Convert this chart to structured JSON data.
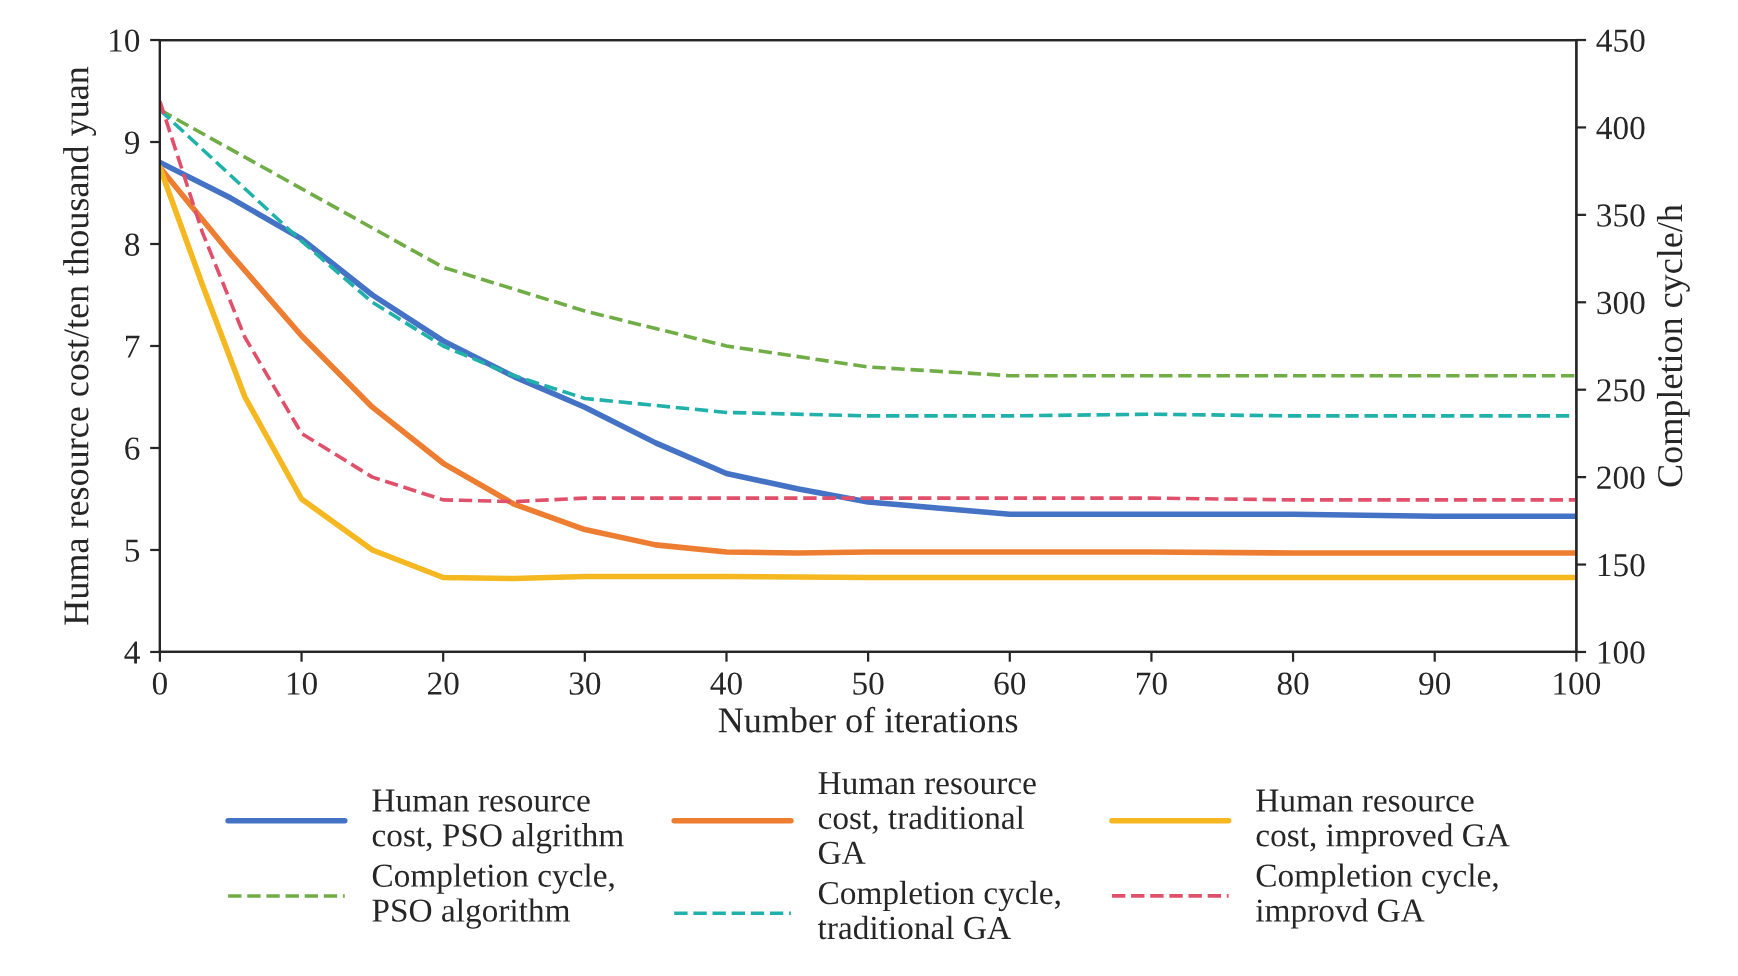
{
  "chart_data": {
    "type": "line",
    "xlabel": "Number of iterations",
    "ylabel": "Huma resource cost/ten thousand yuan",
    "y2label": "Completion cycle/h",
    "xlim": [
      0,
      100
    ],
    "xticks": [
      0,
      10,
      20,
      30,
      40,
      50,
      60,
      70,
      80,
      90,
      100
    ],
    "ylim": [
      4,
      10
    ],
    "yticks": [
      4,
      5,
      6,
      7,
      8,
      9,
      10
    ],
    "y2lim": [
      100,
      450
    ],
    "y2ticks": [
      100,
      150,
      200,
      250,
      300,
      350,
      400,
      450
    ],
    "grid": false,
    "legend": "bottom",
    "marker": "none",
    "series": [
      {
        "name": "Human resource cost, PSO algrithm",
        "color": "#4472c4",
        "line_style": "solid",
        "x": [
          0,
          5,
          10,
          15,
          20,
          25,
          30,
          35,
          40,
          45,
          50,
          60,
          70,
          80,
          90,
          100
        ],
        "values": [
          8.8,
          8.45,
          8.05,
          7.5,
          7.05,
          6.7,
          6.4,
          6.05,
          5.75,
          5.6,
          5.47,
          5.35,
          5.35,
          5.35,
          5.33,
          5.33
        ]
      },
      {
        "name": "Human resource cost, traditional GA",
        "color": "#ed7d31",
        "line_style": "solid",
        "x": [
          0,
          5,
          10,
          15,
          20,
          25,
          30,
          35,
          40,
          45,
          50,
          60,
          70,
          80,
          90,
          100
        ],
        "values": [
          8.75,
          7.9,
          7.1,
          6.4,
          5.85,
          5.45,
          5.2,
          5.05,
          4.98,
          4.97,
          4.98,
          4.98,
          4.98,
          4.97,
          4.97,
          4.97
        ]
      },
      {
        "name": "Human resource cost, improved GA",
        "color": "#f5b820",
        "line_style": "solid",
        "x": [
          0,
          3,
          6,
          10,
          15,
          20,
          25,
          30,
          40,
          50,
          60,
          70,
          80,
          90,
          100
        ],
        "values": [
          8.75,
          7.6,
          6.5,
          5.5,
          5.0,
          4.73,
          4.72,
          4.74,
          4.74,
          4.73,
          4.73,
          4.73,
          4.73,
          4.73,
          4.73
        ]
      },
      {
        "name": "Completion cycle, PSO algorithm",
        "color": "#70ad47",
        "line_style": "dashed",
        "axis": "y2",
        "x": [
          0,
          10,
          20,
          30,
          40,
          50,
          60,
          70,
          80,
          90,
          100
        ],
        "values": [
          410,
          365,
          320,
          295,
          275,
          263,
          258,
          258,
          258,
          258,
          258
        ]
      },
      {
        "name": "Completion cycle, traditional GA",
        "color": "#20b2aa",
        "line_style": "dashed",
        "axis": "y2",
        "x": [
          0,
          10,
          15,
          20,
          25,
          30,
          40,
          50,
          60,
          70,
          80,
          90,
          100
        ],
        "values": [
          410,
          335,
          300,
          275,
          258,
          245,
          237,
          235,
          235,
          236,
          235,
          235,
          235
        ]
      },
      {
        "name": "Completion cycle, improvd GA",
        "color": "#e0506a",
        "line_style": "dashed",
        "axis": "y2",
        "x": [
          0,
          3,
          6,
          10,
          15,
          20,
          25,
          30,
          40,
          50,
          60,
          70,
          80,
          90,
          100
        ],
        "values": [
          415,
          340,
          280,
          225,
          200,
          187,
          186,
          188,
          188,
          188,
          188,
          188,
          187,
          187,
          187
        ]
      }
    ]
  }
}
